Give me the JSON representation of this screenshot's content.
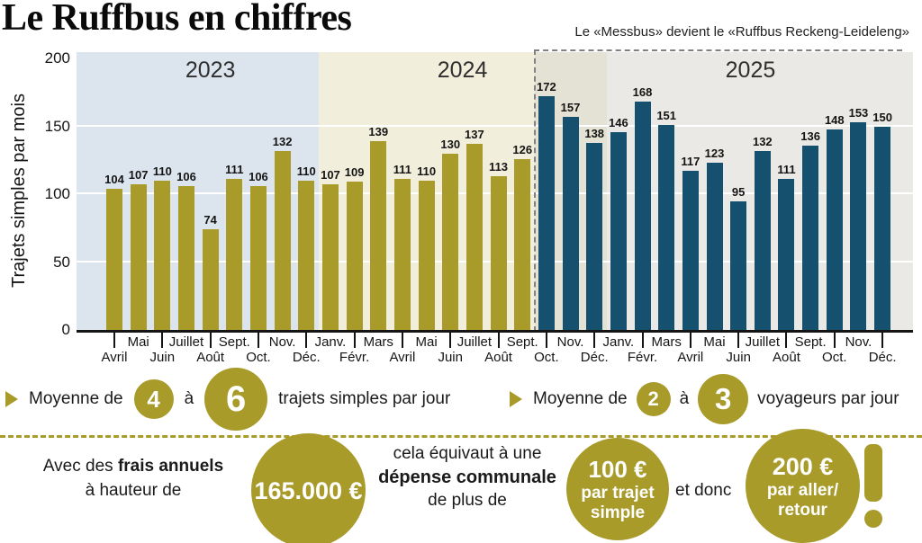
{
  "title": "Le Ruffbus en chiffres",
  "annotation": "Le «Messbus» devient le «Ruffbus Reckeng-Leideleng»",
  "colors": {
    "olive": "#a89b2a",
    "dark_blue": "#15506f",
    "bg_2023": "#dce5ee",
    "bg_2024": "#f1eedb",
    "bg_late_2024": "#e4e2d4",
    "bg_2025": "#eae9e5",
    "grid": "#ffffff",
    "axis": "#141414"
  },
  "chart_data": {
    "type": "bar",
    "title": "Le Ruffbus en chiffres",
    "xlabel": "",
    "ylabel": "Trajets simples par mois",
    "ylim": [
      0,
      200
    ],
    "yticks": [
      0,
      50,
      100,
      150,
      200
    ],
    "gridlines": [
      50,
      100,
      150
    ],
    "x_labels": [
      "Avril",
      "Mai",
      "Juin",
      "Juillet",
      "Août",
      "Sept.",
      "Oct.",
      "Nov.",
      "Déc.",
      "Janv.",
      "Févr.",
      "Mars",
      "Avril",
      "Mai",
      "Juin",
      "Juillet",
      "Août",
      "Sept.",
      "Oct.",
      "Nov.",
      "Déc.",
      "Janv.",
      "Févr.",
      "Mars",
      "Avril",
      "Mai",
      "Juin",
      "Juillet",
      "Août",
      "Sept.",
      "Oct.",
      "Nov.",
      "Déc."
    ],
    "values": [
      104,
      107,
      110,
      106,
      74,
      111,
      106,
      132,
      110,
      107,
      109,
      139,
      111,
      110,
      130,
      137,
      113,
      126,
      172,
      157,
      138,
      146,
      168,
      151,
      117,
      123,
      95,
      132,
      111,
      136,
      148,
      153,
      150
    ],
    "bar_groups": [
      {
        "start": 0,
        "end": 17,
        "color": "#a89b2a"
      },
      {
        "start": 18,
        "end": 32,
        "color": "#15506f"
      }
    ],
    "year_sections": [
      {
        "label": "2023",
        "start": 0,
        "end": 8,
        "bg": "#dce5ee",
        "label_center_index": 4
      },
      {
        "label": "2024",
        "start": 9,
        "end": 17,
        "bg": "#f1eedb",
        "label_center_index": 14.5
      },
      {
        "label": "",
        "start": 18,
        "end": 20,
        "bg": "#e4e2d4",
        "label_center_index": null
      },
      {
        "label": "2025",
        "start": 21,
        "end": 32,
        "bg": "#eae9e5",
        "label_center_index": 26.5
      }
    ],
    "legend_position": "none",
    "grid": "on"
  },
  "facts": [
    {
      "prefix": "Moyenne de",
      "value_low": "4",
      "joiner": "à",
      "value_high": "6",
      "suffix": "trajets simples par jour"
    },
    {
      "prefix": "Moyenne de",
      "value_low": "2",
      "joiner": "à",
      "value_high": "3",
      "suffix": "voyageurs par jour"
    }
  ],
  "cost": {
    "intro_normal": "Avec des",
    "intro_bold": "frais annuels",
    "intro_line2": "à hauteur de",
    "annual_circle": "165.000 €",
    "equiv_line1": "cela équivaut à une",
    "equiv_bold": "dépense communale",
    "equiv_line3": "de plus de",
    "per_trip_circle": {
      "amount": "100 €",
      "line2": "par trajet",
      "line3": "simple"
    },
    "connector": "et donc",
    "round_trip_circle": {
      "amount": "200 €",
      "line2": "par aller/",
      "line3": "retour"
    },
    "exclamation": "!"
  }
}
